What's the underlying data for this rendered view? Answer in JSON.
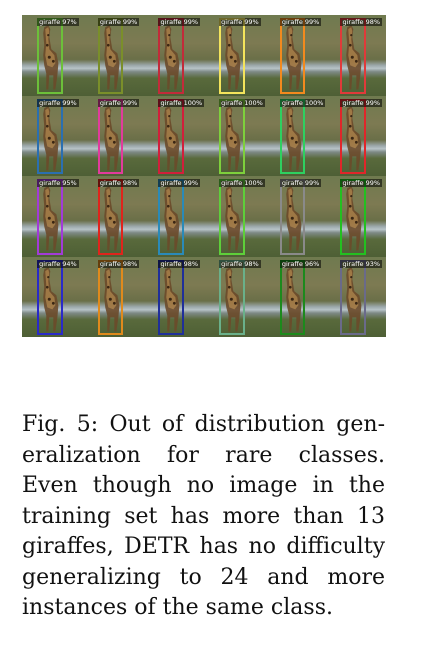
{
  "figure": {
    "rows": 4,
    "cols": 6,
    "detections": [
      {
        "label": "giraffe",
        "score": "97%",
        "color": "#6cc03a"
      },
      {
        "label": "giraffe",
        "score": "99%",
        "color": "#7a8f2a"
      },
      {
        "label": "giraffe",
        "score": "99%",
        "color": "#c22b3a"
      },
      {
        "label": "giraffe",
        "score": "99%",
        "color": "#f4e45c"
      },
      {
        "label": "giraffe",
        "score": "99%",
        "color": "#f28a1e"
      },
      {
        "label": "giraffe",
        "score": "98%",
        "color": "#e03a3a"
      },
      {
        "label": "giraffe",
        "score": "99%",
        "color": "#2b6fb0"
      },
      {
        "label": "giraffe",
        "score": "99%",
        "color": "#e23b9c"
      },
      {
        "label": "giraffe",
        "score": "100%",
        "color": "#d11f3b"
      },
      {
        "label": "giraffe",
        "score": "100%",
        "color": "#7ed03c"
      },
      {
        "label": "giraffe",
        "score": "100%",
        "color": "#2ed060"
      },
      {
        "label": "giraffe",
        "score": "99%",
        "color": "#e0262a"
      },
      {
        "label": "giraffe",
        "score": "95%",
        "color": "#a23bd8"
      },
      {
        "label": "giraffe",
        "score": "98%",
        "color": "#e0241c"
      },
      {
        "label": "giraffe",
        "score": "99%",
        "color": "#2a8ab8"
      },
      {
        "label": "giraffe",
        "score": "100%",
        "color": "#5ecf3a"
      },
      {
        "label": "giraffe",
        "score": "99%",
        "color": "#8a8a8a"
      },
      {
        "label": "giraffe",
        "score": "99%",
        "color": "#23c020"
      },
      {
        "label": "giraffe",
        "score": "94%",
        "color": "#2a2ac8"
      },
      {
        "label": "giraffe",
        "score": "98%",
        "color": "#e08a1c"
      },
      {
        "label": "giraffe",
        "score": "98%",
        "color": "#1f2f9a"
      },
      {
        "label": "giraffe",
        "score": "98%",
        "color": "#6ab08a"
      },
      {
        "label": "giraffe",
        "score": "96%",
        "color": "#1c8a1c"
      },
      {
        "label": "giraffe",
        "score": "93%",
        "color": "#6a6a8a"
      }
    ]
  },
  "caption": {
    "prefix": "Fig. 5:",
    "text": "Out of distribution gen­eralization for rare classes. Even though no image in the training set has more than 13 giraffes, DETR has no diffi­culty generalizing to 24 and more instances of the same class."
  }
}
